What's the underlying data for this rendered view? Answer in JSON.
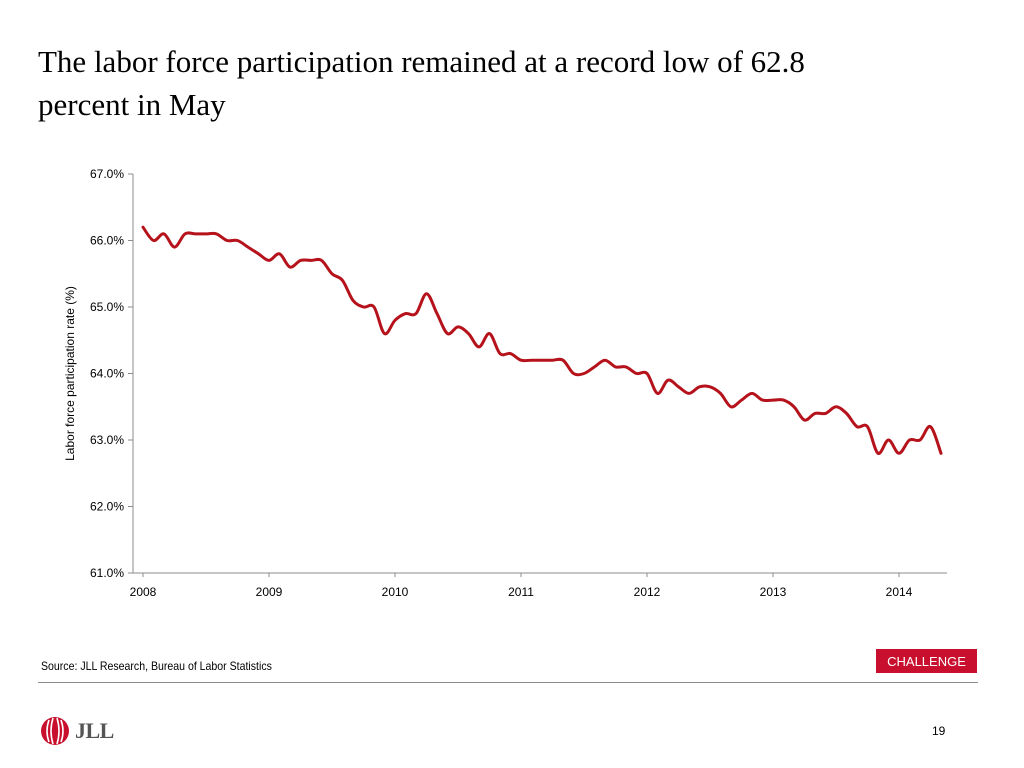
{
  "title": {
    "line1": "The labor force participation remained at a record low of 62.8",
    "line2": "percent in May"
  },
  "source": "Source: JLL Research, Bureau of Labor Statistics",
  "badge": "CHALLENGE",
  "logo": {
    "text": "JLL",
    "icon": "jll-logo-icon"
  },
  "page_number": "19",
  "colors": {
    "line": "#b5121b",
    "badge": "#c8102e",
    "axis": "#8c8c8c"
  },
  "chart_data": {
    "type": "line",
    "title": "",
    "ylabel": "Labor force participation rate (%)",
    "xlabel": "",
    "ylim": [
      61.0,
      67.0
    ],
    "xlim": [
      "2008-01",
      "2014-05"
    ],
    "grid": false,
    "yticks": [
      {
        "value": 67,
        "label": "67.0%"
      },
      {
        "value": 66,
        "label": "66.0%"
      },
      {
        "value": 65,
        "label": "65.0%"
      },
      {
        "value": 64,
        "label": "64.0%"
      },
      {
        "value": 63,
        "label": "63.0%"
      },
      {
        "value": 62,
        "label": "62.0%"
      },
      {
        "value": 61,
        "label": "61.0%"
      }
    ],
    "xticks": [
      {
        "value": "2008-01",
        "label": "2008"
      },
      {
        "value": "2009-01",
        "label": "2009"
      },
      {
        "value": "2010-01",
        "label": "2010"
      },
      {
        "value": "2011-01",
        "label": "2011"
      },
      {
        "value": "2012-01",
        "label": "2012"
      },
      {
        "value": "2013-01",
        "label": "2013"
      },
      {
        "value": "2014-01",
        "label": "2014"
      }
    ],
    "series": [
      {
        "x": [
          "2008-01",
          "2008-02",
          "2008-03",
          "2008-04",
          "2008-05",
          "2008-06",
          "2008-07",
          "2008-08",
          "2008-09",
          "2008-10",
          "2008-11",
          "2008-12",
          "2009-01",
          "2009-02",
          "2009-03",
          "2009-04",
          "2009-05",
          "2009-06",
          "2009-07",
          "2009-08",
          "2009-09",
          "2009-10",
          "2009-11",
          "2009-12",
          "2010-01",
          "2010-02",
          "2010-03",
          "2010-04",
          "2010-05",
          "2010-06",
          "2010-07",
          "2010-08",
          "2010-09",
          "2010-10",
          "2010-11",
          "2010-12",
          "2011-01",
          "2011-02",
          "2011-03",
          "2011-04",
          "2011-05",
          "2011-06",
          "2011-07",
          "2011-08",
          "2011-09",
          "2011-10",
          "2011-11",
          "2011-12",
          "2012-01",
          "2012-02",
          "2012-03",
          "2012-04",
          "2012-05",
          "2012-06",
          "2012-07",
          "2012-08",
          "2012-09",
          "2012-10",
          "2012-11",
          "2012-12",
          "2013-01",
          "2013-02",
          "2013-03",
          "2013-04",
          "2013-05",
          "2013-06",
          "2013-07",
          "2013-08",
          "2013-09",
          "2013-10",
          "2013-11",
          "2013-12",
          "2014-01",
          "2014-02",
          "2014-03",
          "2014-04",
          "2014-05"
        ],
        "values": [
          66.2,
          66.0,
          66.1,
          65.9,
          66.1,
          66.1,
          66.1,
          66.1,
          66.0,
          66.0,
          65.9,
          65.8,
          65.7,
          65.8,
          65.6,
          65.7,
          65.7,
          65.7,
          65.5,
          65.4,
          65.1,
          65.0,
          65.0,
          64.6,
          64.8,
          64.9,
          64.9,
          65.2,
          64.9,
          64.6,
          64.7,
          64.6,
          64.4,
          64.6,
          64.3,
          64.3,
          64.2,
          64.2,
          64.2,
          64.2,
          64.2,
          64.0,
          64.0,
          64.1,
          64.2,
          64.1,
          64.1,
          64.0,
          64.0,
          63.7,
          63.9,
          63.8,
          63.7,
          63.8,
          63.8,
          63.7,
          63.5,
          63.6,
          63.7,
          63.6,
          63.6,
          63.6,
          63.5,
          63.3,
          63.4,
          63.4,
          63.5,
          63.4,
          63.2,
          63.2,
          62.8,
          63.0,
          62.8,
          63.0,
          63.0,
          63.2,
          62.8
        ]
      }
    ]
  }
}
